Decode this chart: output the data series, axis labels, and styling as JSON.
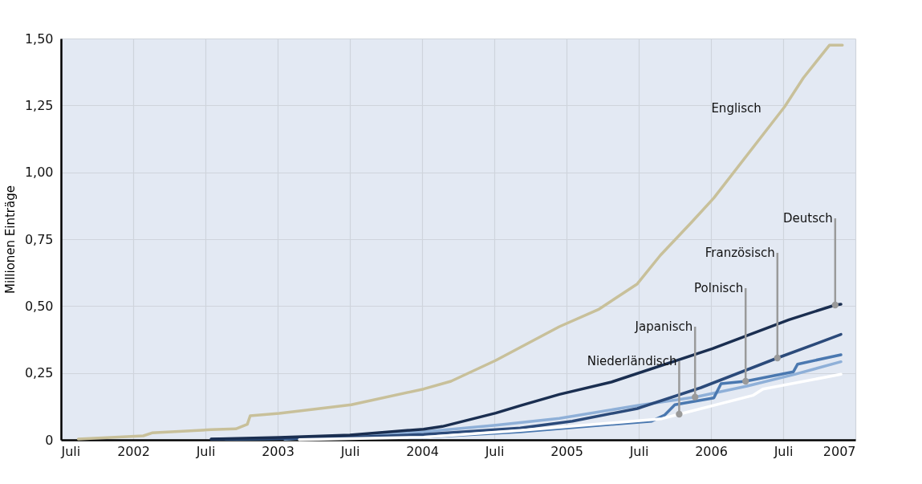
{
  "chart_data": {
    "type": "line",
    "ylabel": "Millionen Einträge",
    "xlim": [
      2001.5,
      2007.0
    ],
    "xticks": [
      {
        "value": 2001.5,
        "label": "Juli"
      },
      2002,
      {
        "value": 2002.5,
        "label": "Juli"
      },
      2003,
      {
        "value": 2003.5,
        "label": "Juli"
      },
      2004,
      {
        "value": 2004.5,
        "label": "Juli"
      },
      2005,
      {
        "value": 2005.5,
        "label": "Juli"
      },
      2006,
      {
        "value": 2006.5,
        "label": "Juli"
      },
      2007
    ],
    "ylim": [
      0,
      1.5
    ],
    "yticks": [
      0,
      {
        "value": 0.25,
        "label": "0,25"
      },
      {
        "value": 0.5,
        "label": "0,50"
      },
      {
        "value": 0.75,
        "label": "0,75"
      },
      {
        "value": 1.0,
        "label": "1,00"
      },
      {
        "value": 1.25,
        "label": "1,25"
      },
      {
        "value": 1.5,
        "label": "1,50"
      }
    ],
    "grid": true,
    "marker": "none",
    "line_style": "solid",
    "series": [
      {
        "name": "Englisch",
        "color": "#c8c09a",
        "x": [
          2001.62,
          2002.07,
          2002.13,
          2002.54,
          2002.71,
          2002.79,
          2002.81,
          2003.01,
          2003.51,
          2004.01,
          2004.2,
          2004.51,
          2004.95,
          2005.22,
          2005.49,
          2005.65,
          2005.86,
          2006.02,
          2006.51,
          2006.64,
          2006.82,
          2006.91
        ],
        "values": [
          0.003,
          0.015,
          0.026,
          0.038,
          0.041,
          0.058,
          0.09,
          0.099,
          0.131,
          0.19,
          0.219,
          0.297,
          0.423,
          0.487,
          0.583,
          0.69,
          0.81,
          0.904,
          1.245,
          1.353,
          1.475,
          1.475
        ]
      },
      {
        "name": "Niederländisch",
        "color": "#ffffff",
        "x": [
          2003.15,
          2004.01,
          2004.68,
          2005.66,
          2005.78,
          2006.29,
          2006.36,
          2006.9
        ],
        "values": [
          0.001,
          0.01,
          0.035,
          0.079,
          0.096,
          0.166,
          0.19,
          0.245
        ]
      },
      {
        "name": "Japanisch",
        "color": "#8fb0d8",
        "x": [
          2003.05,
          2004.01,
          2004.51,
          2004.95,
          2005.49,
          2005.89,
          2006.25,
          2006.58,
          2006.9
        ],
        "values": [
          0.002,
          0.03,
          0.055,
          0.08,
          0.128,
          0.16,
          0.201,
          0.245,
          0.292
        ]
      },
      {
        "name": "Polnisch",
        "color": "#4a78b0",
        "x": [
          2002.64,
          2004.01,
          2004.68,
          2005.59,
          2005.68,
          2005.75,
          2006.02,
          2006.07,
          2006.24,
          2006.57,
          2006.6,
          2006.9
        ],
        "values": [
          0.002,
          0.01,
          0.03,
          0.07,
          0.093,
          0.131,
          0.157,
          0.21,
          0.219,
          0.254,
          0.283,
          0.318
        ]
      },
      {
        "name": "Französisch",
        "color": "#2b4a7a",
        "x": [
          2002.54,
          2003.01,
          2003.5,
          2004.01,
          2004.68,
          2005.04,
          2005.49,
          2005.93,
          2006.46,
          2006.9
        ],
        "values": [
          0.002,
          0.005,
          0.01,
          0.02,
          0.044,
          0.07,
          0.117,
          0.195,
          0.306,
          0.394
        ]
      },
      {
        "name": "Deutsch",
        "color": "#1a2e50",
        "x": [
          2002.54,
          2003.01,
          2003.5,
          2004.01,
          2004.14,
          2004.51,
          2004.68,
          2004.95,
          2005.31,
          2006.01,
          2006.54,
          2006.86,
          2006.9
        ],
        "values": [
          0.003,
          0.009,
          0.018,
          0.04,
          0.05,
          0.1,
          0.128,
          0.17,
          0.216,
          0.341,
          0.449,
          0.504,
          0.507
        ]
      }
    ]
  }
}
